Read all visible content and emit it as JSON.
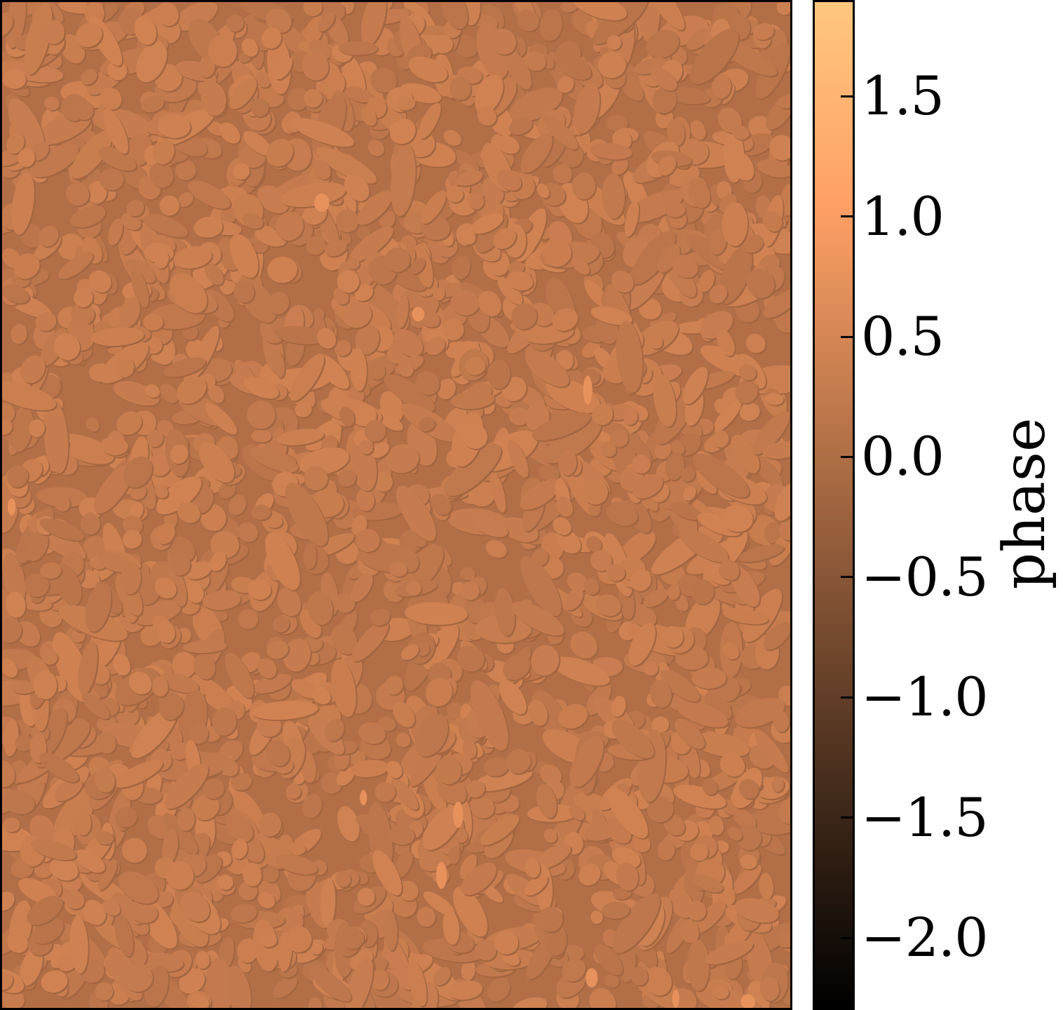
{
  "chart_data": {
    "type": "heatmap",
    "title": "",
    "xlabel": "",
    "ylabel": "",
    "colorbar": {
      "label": "phase",
      "range": [
        -2.3,
        1.9
      ],
      "ticks": [
        1.5,
        1.0,
        0.5,
        0.0,
        -0.5,
        -1.0,
        -1.5,
        -2.0
      ],
      "tick_labels": [
        "1.5",
        "1.0",
        "0.5",
        "0.0",
        "−0.5",
        "−1.0",
        "−1.5",
        "−2.0"
      ],
      "colormap": "copper",
      "colormap_stops": [
        "#000000",
        "#3f2819",
        "#7f5033",
        "#bf794c",
        "#ffa066",
        "#ffc77f"
      ]
    },
    "image": {
      "description_value_background": 0.05,
      "grain_value_range": [
        0.15,
        0.45
      ],
      "background_color": "#c5825a"
    }
  }
}
